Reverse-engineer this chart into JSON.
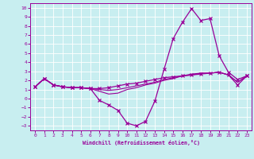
{
  "xlabel": "Windchill (Refroidissement éolien,°C)",
  "background_color": "#c8eef0",
  "line_color": "#990099",
  "grid_color": "#ffffff",
  "xlim": [
    -0.5,
    23.5
  ],
  "ylim": [
    -3.5,
    10.5
  ],
  "xticks": [
    0,
    1,
    2,
    3,
    4,
    5,
    6,
    7,
    8,
    9,
    10,
    11,
    12,
    13,
    14,
    15,
    16,
    17,
    18,
    19,
    20,
    21,
    22,
    23
  ],
  "yticks": [
    -3,
    -2,
    -1,
    0,
    1,
    2,
    3,
    4,
    5,
    6,
    7,
    8,
    9,
    10
  ],
  "hours": [
    0,
    1,
    2,
    3,
    4,
    5,
    6,
    7,
    8,
    9,
    10,
    11,
    12,
    13,
    14,
    15,
    16,
    17,
    18,
    19,
    20,
    21,
    22,
    23
  ],
  "windchill": [
    1.3,
    2.2,
    1.5,
    1.3,
    1.2,
    1.2,
    1.1,
    -0.2,
    -0.7,
    -1.3,
    -2.7,
    -3.0,
    -2.5,
    -0.3,
    3.2,
    6.6,
    8.4,
    9.9,
    8.6,
    8.8,
    4.7,
    2.9,
    2.1,
    2.5
  ],
  "temp": [
    1.3,
    2.2,
    1.5,
    1.3,
    1.2,
    1.2,
    1.1,
    1.1,
    1.2,
    1.4,
    1.6,
    1.7,
    1.9,
    2.1,
    2.3,
    2.4,
    2.5,
    2.6,
    2.7,
    2.8,
    2.9,
    2.6,
    1.5,
    2.5
  ],
  "feels1": [
    1.3,
    2.2,
    1.5,
    1.3,
    1.2,
    1.2,
    1.1,
    1.0,
    0.9,
    1.0,
    1.2,
    1.4,
    1.6,
    1.8,
    2.1,
    2.3,
    2.5,
    2.7,
    2.8,
    2.8,
    2.9,
    2.6,
    1.8,
    2.5
  ],
  "feels2": [
    1.3,
    2.2,
    1.5,
    1.3,
    1.2,
    1.2,
    1.1,
    0.8,
    0.5,
    0.6,
    1.0,
    1.2,
    1.5,
    1.7,
    2.0,
    2.2,
    2.5,
    2.6,
    2.8,
    2.8,
    2.9,
    2.6,
    1.8,
    2.5
  ]
}
